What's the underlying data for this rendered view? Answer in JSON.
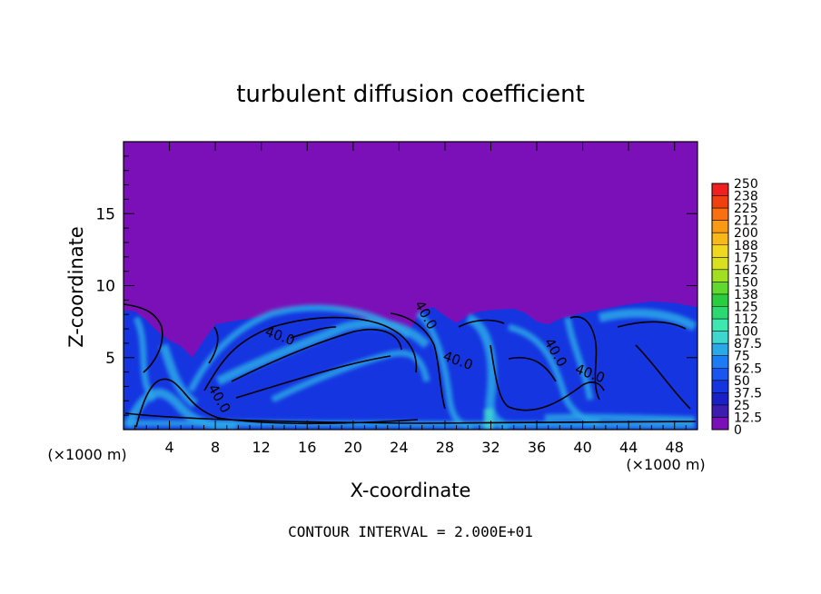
{
  "chart_data": {
    "type": "heatmap",
    "title": "turbulent diffusion coefficient",
    "xlabel": "X-coordinate",
    "ylabel": "Z-coordinate",
    "x_unit": "(×1000 m)",
    "y_unit": "(×1000 m)",
    "xlim": [
      0,
      50
    ],
    "ylim": [
      0,
      20
    ],
    "x_ticks": [
      "4",
      "8",
      "12",
      "16",
      "20",
      "24",
      "28",
      "32",
      "36",
      "40",
      "44",
      "48"
    ],
    "y_ticks": [
      "5",
      "10",
      "15"
    ],
    "colorbar_labels": [
      "0",
      "12.5",
      "25",
      "37.5",
      "50",
      "62.5",
      "75",
      "87.5",
      "100",
      "112",
      "125",
      "138",
      "150",
      "162",
      "175",
      "188",
      "200",
      "212",
      "225",
      "238",
      "250"
    ],
    "colorbar_range": [
      0,
      250
    ],
    "contour_labels": [
      {
        "text": "40.0",
        "x": 13.5,
        "z": 6.2
      },
      {
        "text": "40.0",
        "x": 26.0,
        "z": 7.8
      },
      {
        "text": "40.0",
        "x": 29.0,
        "z": 4.5
      },
      {
        "text": "40.0",
        "x": 37.3,
        "z": 5.2
      },
      {
        "text": "40.0",
        "x": 40.5,
        "z": 3.6
      },
      {
        "text": "40.0",
        "x": 8.0,
        "z": 2.0
      }
    ],
    "footer": "CONTOUR INTERVAL = 2.000E+01",
    "boundary_layer_top_z": 8.5,
    "colors": {
      "background_field": "#7b10b8",
      "turbulent_layer": "#1535e0",
      "high_values": "#2aa8e8"
    }
  }
}
